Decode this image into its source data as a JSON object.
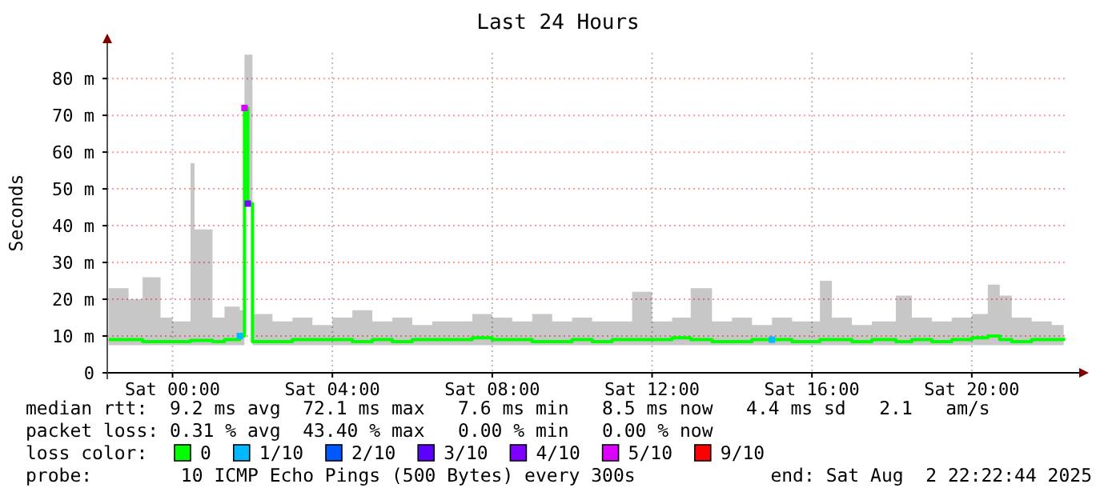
{
  "chart_data": {
    "type": "line",
    "title": "Last 24 Hours",
    "ylabel": "Seconds",
    "xlim": [
      "2025-08-01T22:22",
      "2025-08-02T22:22"
    ],
    "xticks": [
      {
        "value": "2025-08-02T00:00",
        "label": "Sat 00:00"
      },
      {
        "value": "2025-08-02T04:00",
        "label": "Sat 04:00"
      },
      {
        "value": "2025-08-02T08:00",
        "label": "Sat 08:00"
      },
      {
        "value": "2025-08-02T12:00",
        "label": "Sat 12:00"
      },
      {
        "value": "2025-08-02T16:00",
        "label": "Sat 16:00"
      },
      {
        "value": "2025-08-02T20:00",
        "label": "Sat 20:00"
      }
    ],
    "ylim": [
      0,
      87
    ],
    "yticks": [
      0,
      {
        "value": 10,
        "label": "10 m"
      },
      {
        "value": 20,
        "label": "20 m"
      },
      {
        "value": 30,
        "label": "30 m"
      },
      {
        "value": 40,
        "label": "40 m"
      },
      {
        "value": 50,
        "label": "50 m"
      },
      {
        "value": 60,
        "label": "60 m"
      },
      {
        "value": 70,
        "label": "70 m"
      },
      {
        "value": 80,
        "label": "80 m"
      }
    ],
    "grid": true,
    "legend": "bottom",
    "legend_title": "loss color:",
    "line_style": "solid",
    "series": [
      {
        "name": "0",
        "color": "#00ff00",
        "type": "line",
        "x": [
          "2025-08-01T22:24",
          "2025-08-01T22:54",
          "2025-08-01T23:15",
          "2025-08-01T23:42",
          "2025-08-02T00:00",
          "2025-08-02T00:27",
          "2025-08-02T00:33",
          "2025-08-02T01:00",
          "2025-08-02T01:18",
          "2025-08-02T01:41",
          "2025-08-02T01:48",
          "2025-08-02T01:53",
          "2025-08-02T02:00",
          "2025-08-02T02:30",
          "2025-08-02T03:00",
          "2025-08-02T03:30",
          "2025-08-02T04:00",
          "2025-08-02T04:30",
          "2025-08-02T05:00",
          "2025-08-02T05:30",
          "2025-08-02T06:00",
          "2025-08-02T06:30",
          "2025-08-02T07:00",
          "2025-08-02T07:30",
          "2025-08-02T08:00",
          "2025-08-02T08:30",
          "2025-08-02T09:00",
          "2025-08-02T09:30",
          "2025-08-02T10:00",
          "2025-08-02T10:30",
          "2025-08-02T11:00",
          "2025-08-02T11:30",
          "2025-08-02T12:00",
          "2025-08-02T12:30",
          "2025-08-02T12:58",
          "2025-08-02T13:30",
          "2025-08-02T14:00",
          "2025-08-02T14:30",
          "2025-08-02T15:00",
          "2025-08-02T15:30",
          "2025-08-02T16:12",
          "2025-08-02T16:30",
          "2025-08-02T17:00",
          "2025-08-02T17:30",
          "2025-08-02T18:06",
          "2025-08-02T18:30",
          "2025-08-02T19:00",
          "2025-08-02T19:30",
          "2025-08-02T20:00",
          "2025-08-02T20:24",
          "2025-08-02T20:42",
          "2025-08-02T21:00",
          "2025-08-02T21:30",
          "2025-08-02T22:00",
          "2025-08-02T22:18"
        ],
        "values": [
          9,
          9,
          8.5,
          8.5,
          8.5,
          8.8,
          8.8,
          8.5,
          9,
          10,
          72,
          46,
          8.5,
          8.5,
          9,
          9,
          9,
          8.5,
          9,
          8.5,
          9,
          9,
          9,
          9.5,
          9,
          9,
          8.5,
          8.5,
          9,
          8.5,
          9,
          9,
          9,
          9.5,
          9,
          8.5,
          8.5,
          9,
          9,
          8.5,
          9,
          9,
          8.5,
          9,
          8.5,
          9,
          8.5,
          9,
          9.5,
          10,
          9,
          8.5,
          9,
          9,
          9.5
        ],
        "lower": [
          7.5,
          7.5,
          7.5,
          7.5,
          7.5,
          7.5,
          7.5,
          7.5,
          7.5,
          7.5,
          46,
          46,
          7.5,
          7.5,
          7.5,
          7.5,
          7.5,
          7.5,
          7.5,
          7.5,
          7.5,
          7.5,
          7.5,
          7.5,
          7.5,
          7.5,
          7.5,
          7.5,
          7.5,
          7.5,
          7.5,
          7.5,
          7.5,
          7.5,
          7.5,
          7.5,
          7.5,
          7.5,
          7.5,
          7.5,
          7.5,
          7.5,
          7.5,
          7.5,
          7.5,
          7.5,
          7.5,
          7.5,
          7.5,
          7.5,
          7.5,
          7.5,
          7.5,
          7.5,
          7.5
        ],
        "upper": [
          23,
          20,
          26,
          15,
          14,
          57,
          39,
          15,
          18,
          17,
          86.5,
          86.5,
          16,
          14,
          15,
          13,
          15,
          17,
          14,
          15,
          13,
          14,
          14,
          16,
          15,
          14,
          16,
          14,
          15,
          14,
          14,
          22,
          14,
          15,
          23,
          14,
          15,
          13,
          15,
          14,
          25,
          15,
          13,
          14,
          21,
          15,
          14,
          15,
          16,
          24,
          21,
          15,
          14,
          13,
          12
        ]
      },
      {
        "name": "1/10",
        "color": "#00b8ff",
        "type": "scatter",
        "marker": "square",
        "x": [
          "2025-08-02T01:41",
          "2025-08-02T15:00"
        ],
        "values": [
          10,
          9
        ]
      },
      {
        "name": "2/10",
        "color": "#0059ff",
        "type": "scatter"
      },
      {
        "name": "3/10",
        "color": "#5e00ff",
        "type": "scatter"
      },
      {
        "name": "4/10",
        "color": "#7e00ff",
        "type": "scatter",
        "marker": "square",
        "x": [
          "2025-08-02T01:53"
        ],
        "values": [
          46
        ]
      },
      {
        "name": "5/10",
        "color": "#dd00ff",
        "type": "scatter",
        "marker": "square",
        "x": [
          "2025-08-02T01:48"
        ],
        "values": [
          72
        ]
      },
      {
        "name": "9/10",
        "color": "#ff0000",
        "type": "scatter"
      }
    ],
    "annotations": [
      "median rtt:  9.2 ms avg  72.1 ms max   7.6 ms min   8.5 ms now   4.4 ms sd   2.1   am/s",
      "packet loss: 0.31 % avg  43.40 % max   0.00 % min   0.00 % now",
      "probe:        10 ICMP Echo Pings (500 Bytes) every 300s",
      "end: Sat Aug  2 22:22:44 2025"
    ]
  }
}
